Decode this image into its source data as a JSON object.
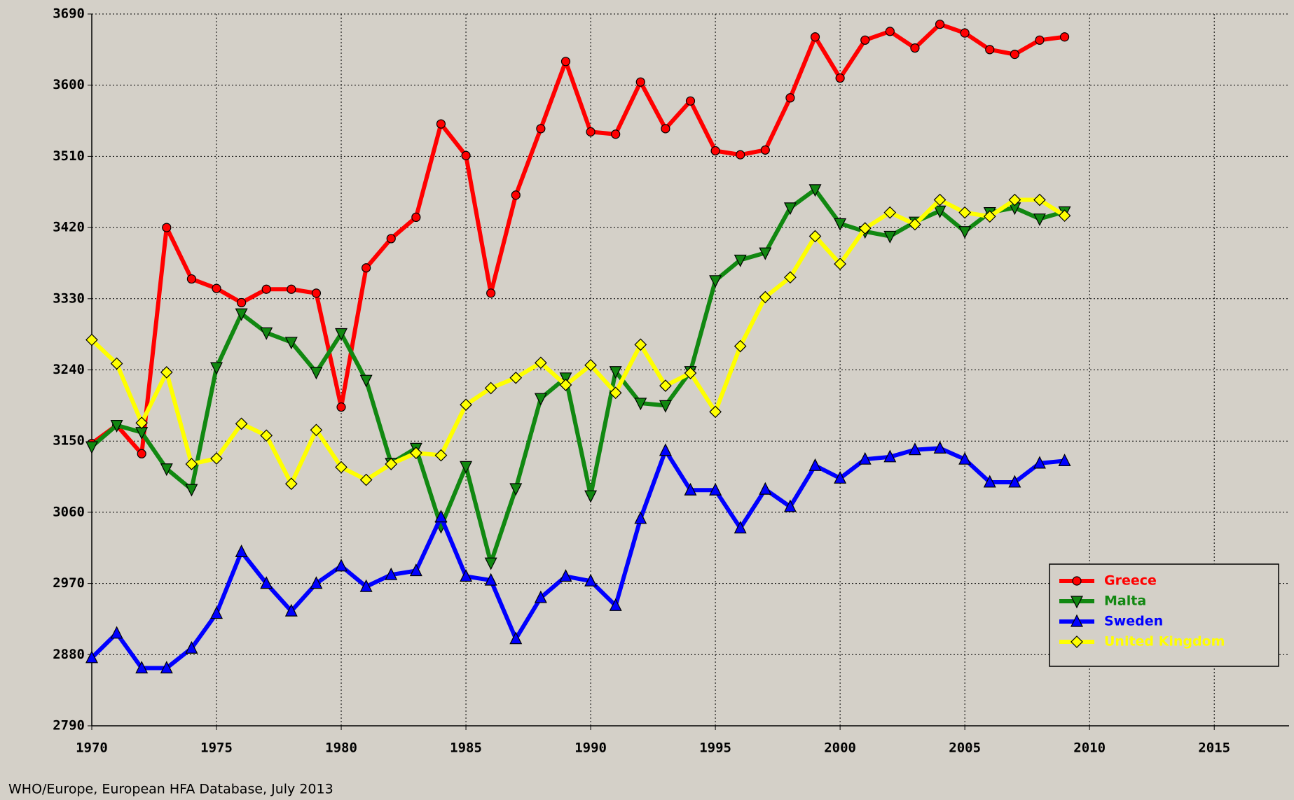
{
  "chart_data": {
    "type": "line",
    "x": [
      1970,
      1971,
      1972,
      1973,
      1974,
      1975,
      1976,
      1977,
      1978,
      1979,
      1980,
      1981,
      1982,
      1983,
      1984,
      1985,
      1986,
      1987,
      1988,
      1989,
      1990,
      1991,
      1992,
      1993,
      1994,
      1995,
      1996,
      1997,
      1998,
      1999,
      2000,
      2001,
      2002,
      2003,
      2004,
      2005,
      2006,
      2007,
      2008,
      2009
    ],
    "series": [
      {
        "name": "Greece",
        "color": "#ff0000",
        "marker": "circle",
        "values": [
          3147,
          3170,
          3134,
          3420,
          3355,
          3343,
          3325,
          3342,
          3342,
          3337,
          3193,
          3369,
          3406,
          3433,
          3551,
          3511,
          3337,
          3461,
          3545,
          3630,
          3541,
          3538,
          3604,
          3545,
          3580,
          3517,
          3512,
          3518,
          3584,
          3661,
          3609,
          3657,
          3668,
          3647,
          3677,
          3666,
          3645,
          3639,
          3657,
          3661
        ]
      },
      {
        "name": "Malta",
        "color": "#118811",
        "marker": "triangle-down",
        "values": [
          3143,
          3170,
          3161,
          3115,
          3089,
          3243,
          3311,
          3287,
          3275,
          3237,
          3286,
          3227,
          3122,
          3141,
          3042,
          3118,
          2996,
          3090,
          3204,
          3230,
          3081,
          3238,
          3198,
          3195,
          3238,
          3353,
          3379,
          3388,
          3445,
          3468,
          3425,
          3415,
          3409,
          3427,
          3441,
          3415,
          3439,
          3445,
          3431,
          3440
        ]
      },
      {
        "name": "Sweden",
        "color": "#0000ff",
        "marker": "triangle-up",
        "values": [
          2876,
          2907,
          2863,
          2863,
          2888,
          2932,
          3010,
          2970,
          2935,
          2970,
          2992,
          2966,
          2981,
          2986,
          3054,
          2979,
          2974,
          2900,
          2952,
          2979,
          2973,
          2942,
          3052,
          3138,
          3088,
          3088,
          3040,
          3089,
          3067,
          3119,
          3103,
          3127,
          3130,
          3139,
          3141,
          3127,
          3098,
          3098,
          3122,
          3125
        ]
      },
      {
        "name": "United Kingdom",
        "color": "#ffff00",
        "marker": "diamond",
        "values": [
          3278,
          3248,
          3173,
          3237,
          3121,
          3128,
          3172,
          3157,
          3096,
          3164,
          3117,
          3101,
          3121,
          3135,
          3132,
          3196,
          3217,
          3230,
          3249,
          3221,
          3246,
          3211,
          3272,
          3220,
          3236,
          3187,
          3270,
          3332,
          3357,
          3409,
          3374,
          3419,
          3439,
          3424,
          3455,
          3439,
          3434,
          3455,
          3455,
          3435
        ]
      }
    ],
    "xlim": [
      1970,
      2018
    ],
    "xticks": [
      1970,
      1975,
      1980,
      1985,
      1990,
      1995,
      2000,
      2005,
      2010,
      2015
    ],
    "ylim": [
      2790,
      3690
    ],
    "yticks": [
      2790,
      2880,
      2970,
      3060,
      3150,
      3240,
      3330,
      3420,
      3510,
      3600,
      3690
    ],
    "grid": true,
    "legend": "lower right",
    "source": "WHO/Europe, European HFA Database, July 2013"
  }
}
